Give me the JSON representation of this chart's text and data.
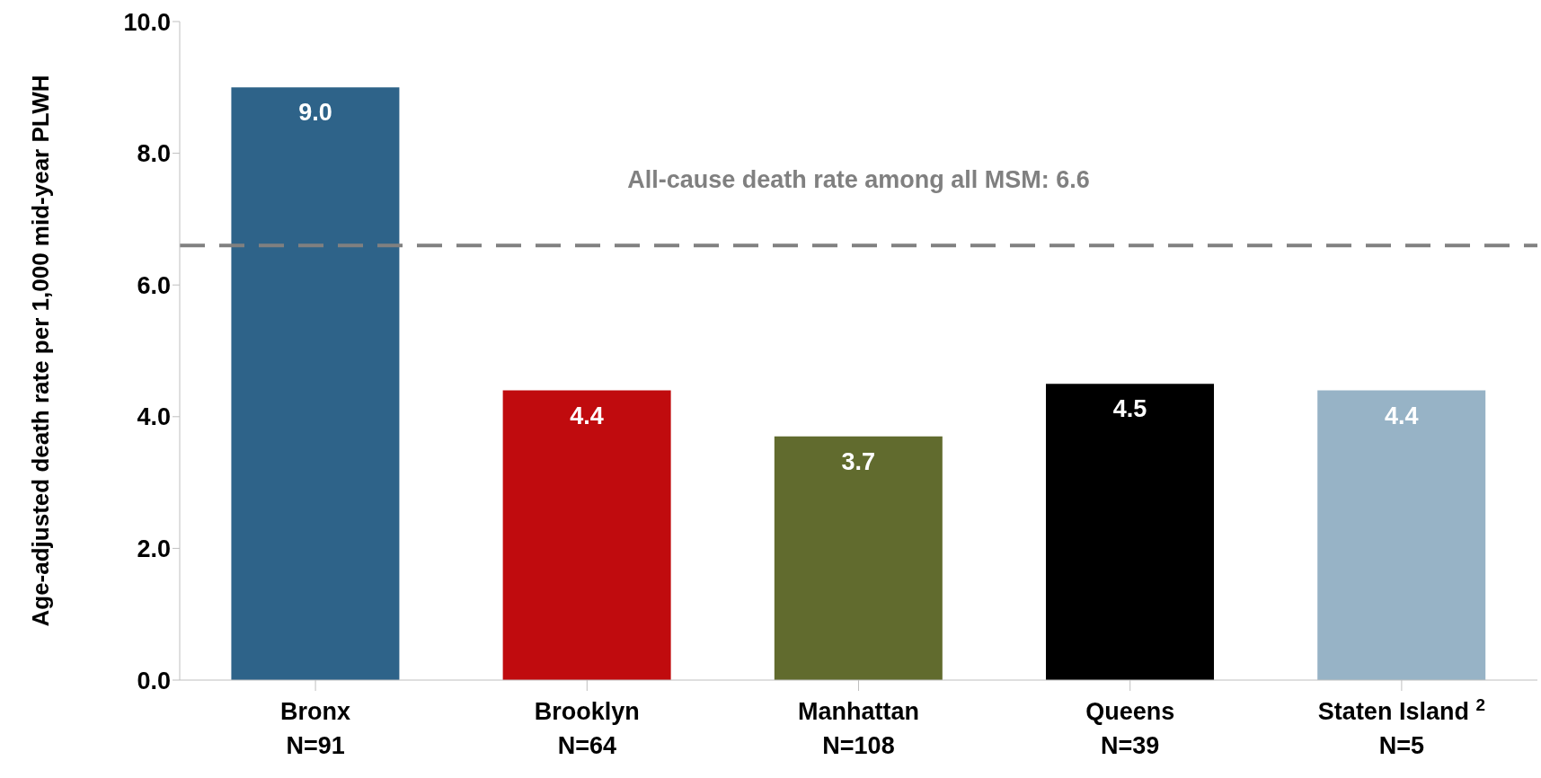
{
  "chart_data": {
    "type": "bar",
    "ylabel": "Age-adjusted death rate per 1,000 mid-year PLWH",
    "categories": [
      "Bronx\nN=91",
      "Brooklyn\nN=64",
      "Manhattan\nN=108",
      "Queens\nN=39",
      "Staten Island $^{2}$\nN=5"
    ],
    "values": [
      9.0,
      4.4,
      3.7,
      4.5,
      4.4
    ],
    "colors": [
      "#2e6389",
      "#c00b0e",
      "#616b2e",
      "#000000",
      "#97b3c6"
    ],
    "value_labels": [
      "9.0",
      "4.4",
      "3.7",
      "4.5",
      "4.4"
    ],
    "ylim": [
      0,
      10
    ],
    "yticks": [
      {
        "value": 0,
        "label": "0.0"
      },
      {
        "value": 2,
        "label": "2.0"
      },
      {
        "value": 4,
        "label": "4.0"
      },
      {
        "value": 6,
        "label": "6.0"
      },
      {
        "value": 8,
        "label": "8.0"
      },
      {
        "value": 10,
        "label": "10.0"
      }
    ],
    "ref_lines": [
      {
        "axis": "y",
        "value": 6.6,
        "label": "All-cause death rate among all MSM: 6.6",
        "color": "#808080",
        "line_style": "dashed"
      }
    ],
    "legend": false
  }
}
